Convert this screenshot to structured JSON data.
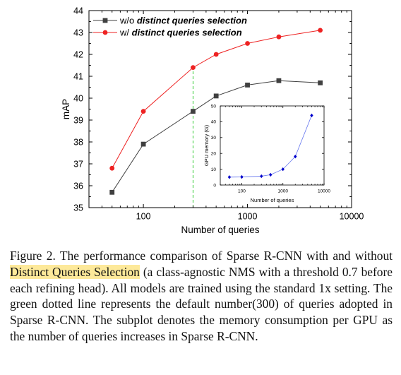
{
  "chart_data": [
    {
      "type": "line",
      "title": "",
      "xlabel": "Number of queries",
      "ylabel": "mAP",
      "xscale": "log",
      "xlim": [
        30,
        10000
      ],
      "ylim": [
        35,
        44
      ],
      "xticks": [
        100,
        1000,
        10000
      ],
      "xtick_labels": [
        "100",
        "1000",
        "10000"
      ],
      "yticks": [
        35,
        36,
        37,
        38,
        39,
        40,
        41,
        42,
        43,
        44
      ],
      "ytick_labels": [
        "35",
        "36",
        "37",
        "38",
        "39",
        "40",
        "41",
        "42",
        "43",
        "44"
      ],
      "grid": false,
      "legend_position": "top-left",
      "reference_line": {
        "x": 300,
        "color": "#33cc33",
        "style": "dashed"
      },
      "series": [
        {
          "name_prefix": "w/o ",
          "name_emph": "distinct queries selection",
          "color": "#404040",
          "marker": "square",
          "x": [
            50,
            100,
            300,
            500,
            1000,
            2000,
            5000
          ],
          "y": [
            35.7,
            37.9,
            39.4,
            40.1,
            40.6,
            40.8,
            40.7
          ]
        },
        {
          "name_prefix": "w/ ",
          "name_emph": "distinct queries selection",
          "color": "#ee2222",
          "marker": "circle",
          "x": [
            50,
            100,
            300,
            500,
            1000,
            2000,
            5000
          ],
          "y": [
            36.8,
            39.4,
            41.4,
            42.0,
            42.5,
            42.8,
            43.1
          ]
        }
      ]
    },
    {
      "type": "line",
      "title": "",
      "xlabel": "Number of queries",
      "ylabel": "GPU memory (G)",
      "xscale": "log",
      "xlim": [
        30,
        10000
      ],
      "ylim": [
        0,
        50
      ],
      "xticks": [
        100,
        1000,
        10000
      ],
      "xtick_labels": [
        "100",
        "1000",
        "10000"
      ],
      "yticks": [
        0,
        10,
        20,
        30,
        40,
        50
      ],
      "ytick_labels": [
        "0",
        "10",
        "20",
        "30",
        "40",
        "50"
      ],
      "grid": false,
      "series": [
        {
          "color": "#0000cc",
          "line_color": "#6677ee",
          "marker": "diamond",
          "x": [
            50,
            100,
            300,
            500,
            1000,
            2000,
            5000
          ],
          "y": [
            5.0,
            5.1,
            5.6,
            6.5,
            10.0,
            18.0,
            44.0
          ]
        }
      ]
    }
  ],
  "caption": {
    "part1": "Figure 2. The performance comparison of Sparse R-CNN with and without ",
    "highlight": "Distinct Queries Selection",
    "part2": " (a class-agnostic NMS with a threshold 0.7 before each refining head).  All models are trained using the standard 1x setting. The green dotted line represents the default number(300) of queries adopted in Sparse R-CNN. The subplot denotes the memory consumption per GPU as the number of queries increases in Sparse R-CNN.",
    "highlight_color": "#fde99a"
  }
}
